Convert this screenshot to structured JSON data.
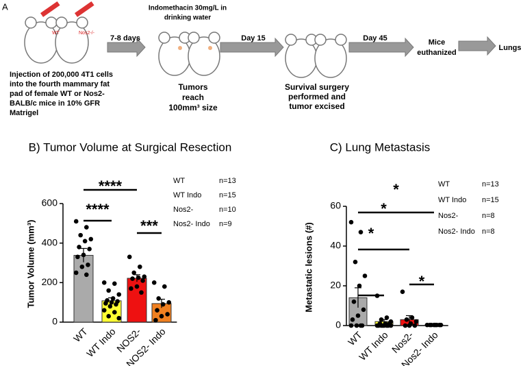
{
  "panel_a": {
    "label": "A",
    "injection_lines": [
      "Injection of 200,000 4T1 cells",
      "into the fourth mammary fat",
      "pad of female WT or Nos2-",
      "BALB/c mice in 10% GFR",
      "Matrigel"
    ],
    "mouse_labels": [
      "WT",
      "Nos2-/-"
    ],
    "step1": "7-8 days",
    "treatment_lines": [
      "Indomethacin 30mg/L in",
      "drinking water"
    ],
    "tumor_lines": [
      "Tumors",
      "reach",
      "100mm³ size"
    ],
    "step2": "Day 15",
    "surgery_lines": [
      "Survival surgery",
      "performed and",
      "tumor excised"
    ],
    "step3": "Day 45",
    "euthanized_lines": [
      "Mice",
      "euthanized"
    ],
    "final": "Lungs"
  },
  "chart_data": [
    {
      "type": "bar",
      "title": "B) Tumor Volume at Surgical Resection",
      "y_label": "Tumor Volume (mm³)",
      "categories": [
        "WT",
        "WT Indo",
        "NOS2-",
        "NOS2- Indo"
      ],
      "values": [
        338,
        108,
        222,
        94
      ],
      "errors": [
        35,
        15,
        18,
        22
      ],
      "colors": [
        "#aaaaaa",
        "#ffff33",
        "#ee1111",
        "#f08020"
      ],
      "points": [
        [
          510,
          480,
          440,
          420,
          410,
          380,
          370,
          340,
          330,
          290,
          280,
          250,
          240
        ],
        [
          200,
          195,
          160,
          140,
          120,
          110,
          105,
          100,
          95,
          90,
          80,
          60,
          50,
          30,
          20
        ],
        [
          330,
          280,
          250,
          230,
          225,
          220,
          210,
          180,
          170,
          150
        ],
        [
          200,
          180,
          120,
          100,
          90,
          60,
          40,
          30,
          10
        ]
      ],
      "ylim": [
        0,
        600
      ],
      "yticks": [
        0,
        200,
        400,
        600
      ],
      "significance": [
        {
          "label": "****",
          "from": 0,
          "to": 2
        },
        {
          "label": "****",
          "from": 0,
          "to": 1
        },
        {
          "label": "***",
          "from": 2,
          "to": 3
        }
      ],
      "legend": [
        {
          "name": "WT",
          "n": "n=13"
        },
        {
          "name": "WT Indo",
          "n": "n=15"
        },
        {
          "name": "Nos2-",
          "n": "n=10"
        },
        {
          "name": "Nos2- Indo",
          "n": "n=9"
        }
      ]
    },
    {
      "type": "bar",
      "title": "C) Lung Metastasis",
      "y_label": "Metastatic lesions (#)",
      "categories": [
        "WT",
        "WT Indo",
        "Nos2-",
        "Nos2- Indo"
      ],
      "values": [
        14,
        2,
        3,
        0.3
      ],
      "errors": [
        5,
        1,
        2,
        0.1
      ],
      "colors": [
        "#aaaaaa",
        "#ffff33",
        "#ee1111",
        "#f08020"
      ],
      "points": [
        [
          52,
          47,
          32,
          25,
          20,
          12,
          8,
          5,
          3,
          0,
          0,
          0,
          0
        ],
        [
          15,
          4,
          3,
          2,
          1,
          1,
          1,
          0,
          0,
          0,
          0,
          0,
          0,
          0,
          0
        ],
        [
          17,
          4,
          3,
          2,
          1,
          0,
          0,
          0
        ],
        [
          0.3,
          0.3,
          0.3,
          0.3,
          0.3,
          0.3,
          0.3,
          0.3
        ]
      ],
      "ylim": [
        0,
        60
      ],
      "yticks": [
        0,
        20,
        40,
        60
      ],
      "significance": [
        {
          "label": "*",
          "from": 0,
          "to": 3
        },
        {
          "label": "*",
          "from": 0,
          "to": 2
        },
        {
          "label": "*",
          "from": 0,
          "to": 1
        },
        {
          "label": "*",
          "from": 2,
          "to": 3
        }
      ],
      "legend": [
        {
          "name": "WT",
          "n": "n=13"
        },
        {
          "name": "WT Indo",
          "n": "n=15"
        },
        {
          "name": "Nos2-",
          "n": "n=8"
        },
        {
          "name": "Nos2- Indo",
          "n": "n=8"
        }
      ]
    }
  ]
}
